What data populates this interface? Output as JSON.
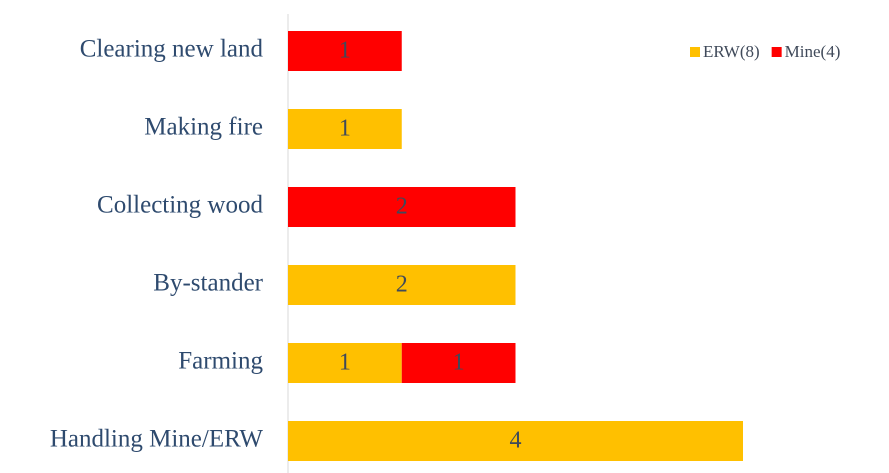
{
  "chart_data": {
    "type": "bar",
    "orientation": "horizontal",
    "stacked": true,
    "categories": [
      "Clearing new land",
      "Making fire",
      "Collecting wood",
      "By-stander",
      "Farming",
      "Handling Mine/ERW"
    ],
    "series": [
      {
        "name": "ERW(8)",
        "color": "#ffc000",
        "values": [
          null,
          1,
          null,
          2,
          1,
          4
        ]
      },
      {
        "name": "Mine(4)",
        "color": "#ff0000",
        "values": [
          1,
          null,
          2,
          null,
          1,
          null
        ]
      }
    ],
    "xlim": [
      0,
      4
    ],
    "legend": "top-right"
  }
}
